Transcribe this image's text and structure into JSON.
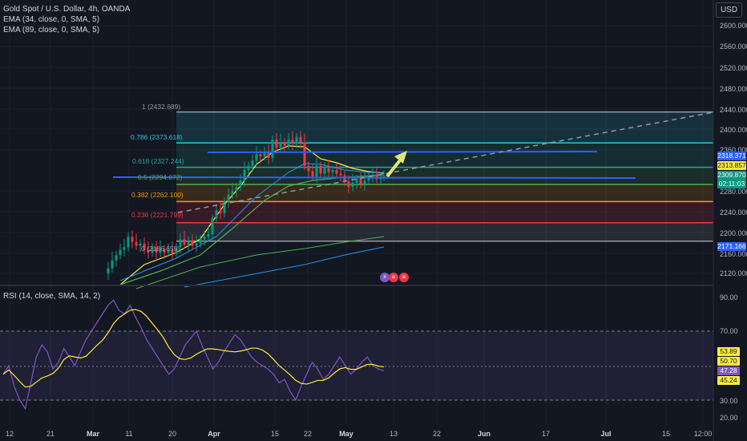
{
  "legend": {
    "title": "Gold Spot / U.S. Dollar, 4h, OANDA",
    "ema1": "EMA (34, close, 0, SMA, 5)",
    "ema2": "EMA (89, close, 0, SMA, 5)",
    "rsi": "RSI (14, close, SMA, 14, 2)"
  },
  "currency_button": "USD",
  "price_axis": [
    "2600.000",
    "2560.000",
    "2520.000",
    "2480.000",
    "2440.000",
    "2400.000",
    "2360.000",
    "2280.000",
    "2240.000",
    "2200.000",
    "2160.000",
    "2120.000"
  ],
  "rsi_axis": [
    "90.00",
    "70.00",
    "30.00",
    "20.00"
  ],
  "date_axis": [
    {
      "label": "12",
      "bold": false
    },
    {
      "label": "21",
      "bold": false
    },
    {
      "label": "Mar",
      "bold": true
    },
    {
      "label": "11",
      "bold": false
    },
    {
      "label": "20",
      "bold": false
    },
    {
      "label": "Apr",
      "bold": true
    },
    {
      "label": "15",
      "bold": false
    },
    {
      "label": "22",
      "bold": false
    },
    {
      "label": "May",
      "bold": true
    },
    {
      "label": "13",
      "bold": false
    },
    {
      "label": "22",
      "bold": false
    },
    {
      "label": "Jun",
      "bold": true
    },
    {
      "label": "17",
      "bold": false
    },
    {
      "label": "Jul",
      "bold": true
    },
    {
      "label": "15",
      "bold": false
    },
    {
      "label": "12:00",
      "bold": false
    }
  ],
  "fib_levels": [
    {
      "label": "1 (2432.689)",
      "color": "#9598a1"
    },
    {
      "label": "0.786 (2373.618)",
      "color": "#26c6da"
    },
    {
      "label": "0.618 (2327.244)",
      "color": "#26a69a"
    },
    {
      "label": "0.5 (2294.672)",
      "color": "#4caf50"
    },
    {
      "label": "0.382 (2262.100)",
      "color": "#ff9800"
    },
    {
      "label": "0.236 (2221.799)",
      "color": "#f23645"
    },
    {
      "label": "0 (2186.655)",
      "color": "#9598a1"
    }
  ],
  "price_tags": [
    {
      "label": "2318.371",
      "bg": "#2962ff",
      "fg": "#ffffff"
    },
    {
      "label": "2313.857",
      "bg": "#ffeb3b",
      "fg": "#131722"
    },
    {
      "label": "2309.870",
      "bg": "#089981",
      "fg": "#ffffff"
    },
    {
      "label": "02:11:03",
      "bg": "#089981",
      "fg": "#ffffff"
    },
    {
      "label": "2171.166",
      "bg": "#2962ff",
      "fg": "#ffffff"
    }
  ],
  "rsi_tags": [
    {
      "label": "53.89",
      "bg": "#ffeb3b",
      "fg": "#131722"
    },
    {
      "label": "50.70",
      "bg": "#ffeb3b",
      "fg": "#131722"
    },
    {
      "label": "47.28",
      "bg": "#7e57c2",
      "fg": "#ffffff"
    },
    {
      "label": "45.24",
      "bg": "#ffeb3b",
      "fg": "#131722"
    }
  ],
  "colors": {
    "background": "#131722",
    "up": "#089981",
    "down": "#f23645",
    "ema34": "#ffeb3b",
    "ema89": "#4caf50",
    "ema_blue": "#2196f3",
    "rsi": "#7e57c2",
    "rsi_ma": "#ffeb3b"
  },
  "chart_data": {
    "type": "candlestick",
    "symbol": "Gold Spot / U.S. Dollar",
    "interval": "4h",
    "price_ylim": [
      2100,
      2620
    ],
    "rsi_ylim": [
      15,
      95
    ],
    "rsi_bands": [
      70,
      50,
      30
    ],
    "fib_retracement": [
      2432.689,
      2373.618,
      2327.244,
      2294.672,
      2262.1,
      2221.799,
      2186.655
    ],
    "current_price": 2309.87,
    "rsi_current": 47.28
  }
}
